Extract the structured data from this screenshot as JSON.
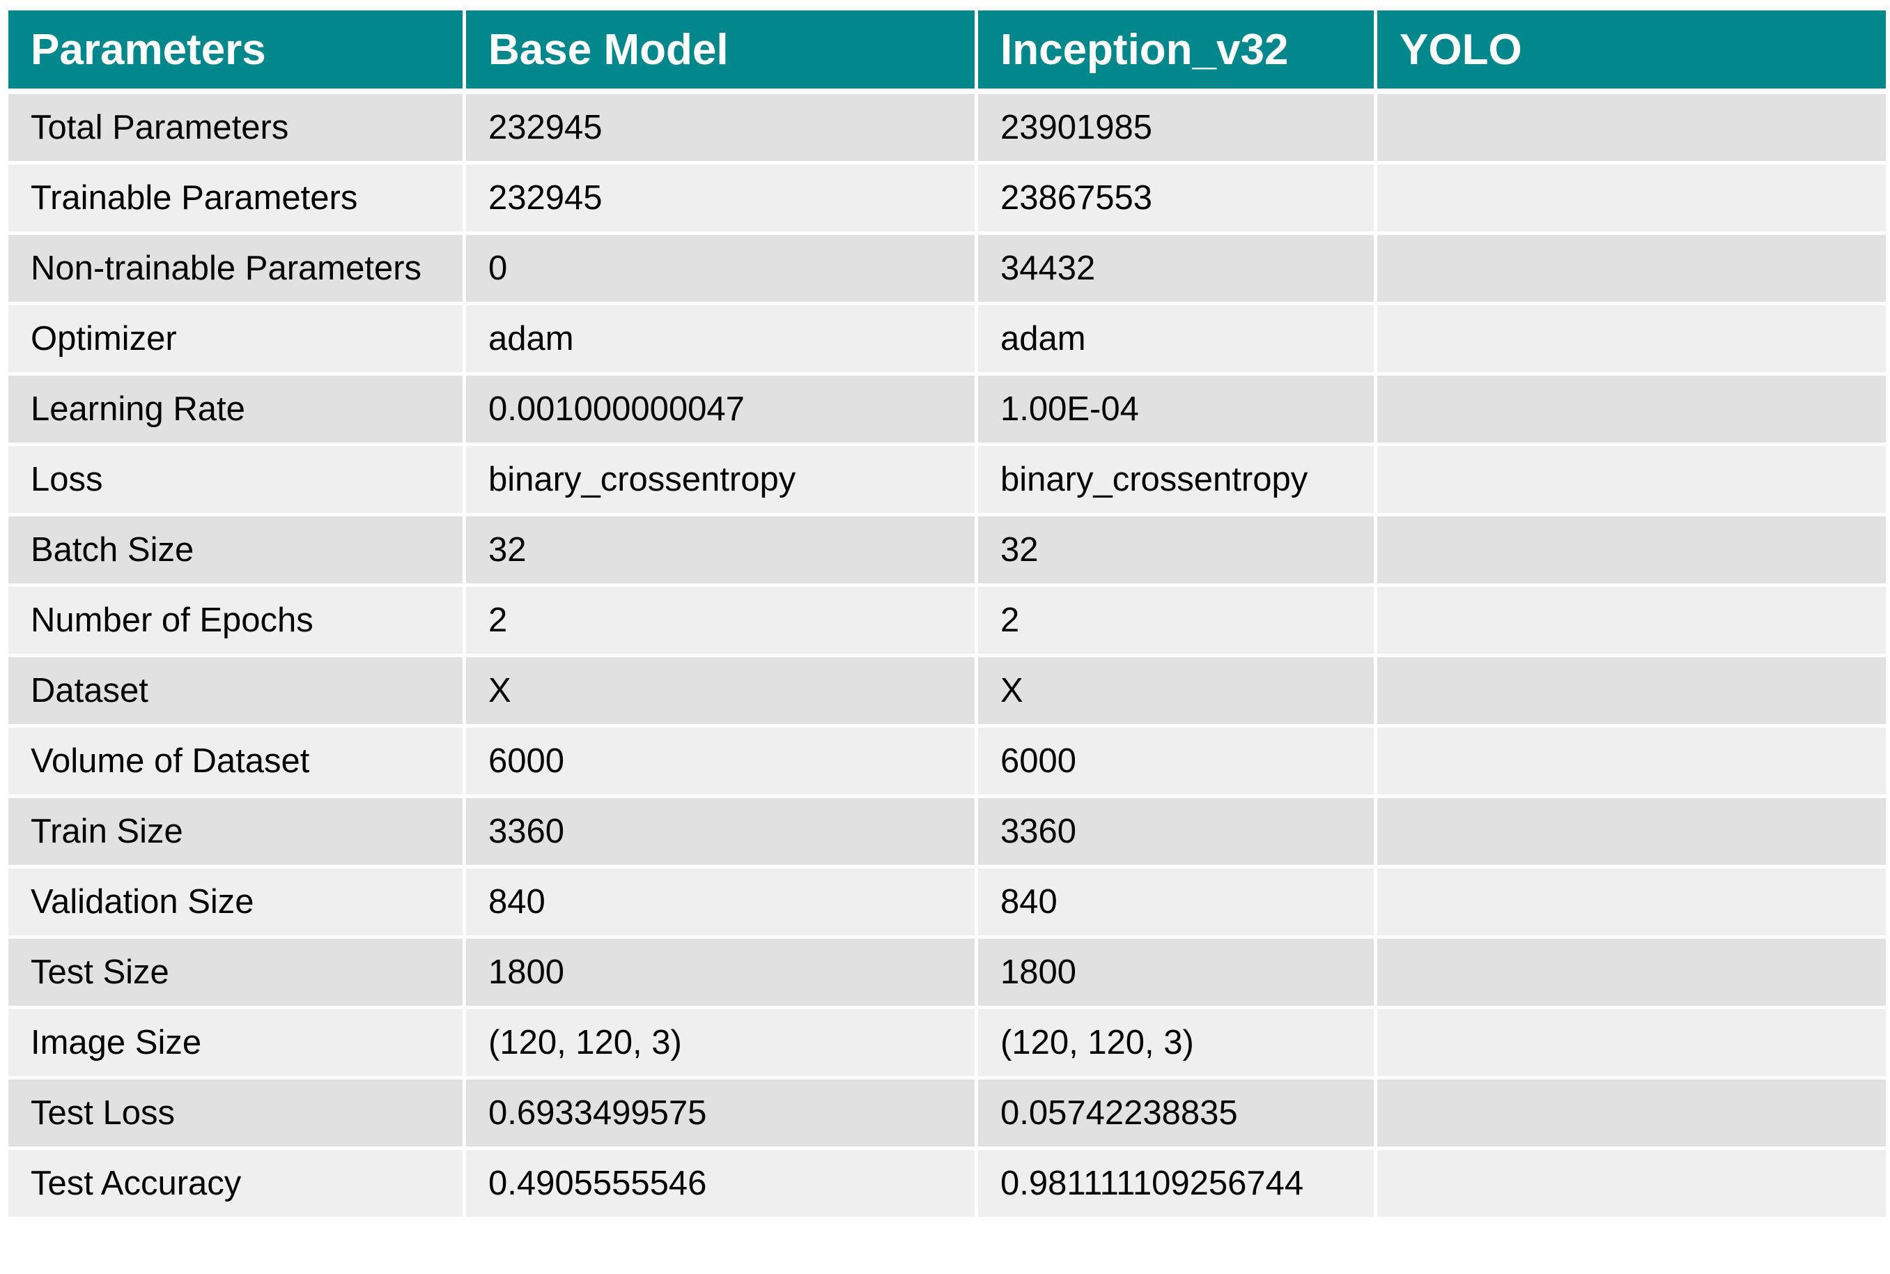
{
  "table": {
    "headers": [
      "Parameters",
      "Base Model",
      "Inception_v32",
      "YOLO"
    ],
    "rows": [
      [
        "Total Parameters",
        "232945",
        "23901985",
        ""
      ],
      [
        "Trainable Parameters",
        "232945",
        "23867553",
        ""
      ],
      [
        "Non-trainable Parameters",
        "0",
        "34432",
        ""
      ],
      [
        "Optimizer",
        "adam",
        "adam",
        ""
      ],
      [
        "Learning Rate",
        "0.001000000047",
        "1.00E-04",
        ""
      ],
      [
        "Loss",
        "binary_crossentropy",
        "binary_crossentropy",
        ""
      ],
      [
        "Batch Size",
        "32",
        "32",
        ""
      ],
      [
        "Number of Epochs",
        "2",
        "2",
        ""
      ],
      [
        "Dataset",
        "X",
        "X",
        ""
      ],
      [
        "Volume of Dataset",
        "6000",
        "6000",
        ""
      ],
      [
        "Train Size",
        "3360",
        "3360",
        ""
      ],
      [
        "Validation Size",
        "840",
        "840",
        ""
      ],
      [
        "Test Size",
        "1800",
        "1800",
        ""
      ],
      [
        "Image Size",
        "(120, 120, 3)",
        "(120, 120, 3)",
        ""
      ],
      [
        "Test Loss",
        "0.6933499575",
        "0.05742238835",
        ""
      ],
      [
        "Test Accuracy",
        "0.4905555546",
        "0.981111109256744",
        ""
      ]
    ]
  },
  "colors": {
    "header_bg": "#02878c",
    "header_text": "#ffffff",
    "row_odd_bg": "#e1e1e1",
    "row_even_bg": "#efefef",
    "grid_line": "#ffffff"
  }
}
